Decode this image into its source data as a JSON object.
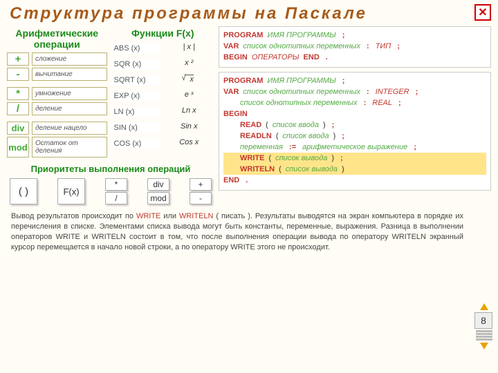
{
  "title": "Структура программы на Паскале",
  "left": {
    "ops_header": "Арифметические операции",
    "fx_header": "Функции F(x)",
    "ops": [
      {
        "sym": "+",
        "desc": "сложение"
      },
      {
        "sym": "-",
        "desc": "вычитание"
      },
      {
        "sym": "*",
        "desc": "умножение"
      },
      {
        "sym": "/",
        "desc": "деление"
      },
      {
        "sym": "div",
        "desc": "деление нацело"
      },
      {
        "sym": "mod",
        "desc": "Остаток от деления"
      }
    ],
    "fx": [
      {
        "name": "ABS (x)",
        "val": "| x |"
      },
      {
        "name": "SQR (x)",
        "val": "x ²"
      },
      {
        "name": "SQRT (x)",
        "val_raw": "sqrt"
      },
      {
        "name": "EXP (x)",
        "val": "e ˣ"
      },
      {
        "name": "LN (x)",
        "val": "Ln x"
      },
      {
        "name": "SIN (x)",
        "val": "Sin x"
      },
      {
        "name": "COS (x)",
        "val": "Cos x"
      }
    ],
    "prio_header": "Приоритеты выполнения операций",
    "prio": {
      "paren": "( )",
      "fx": "F(x)",
      "star": "*",
      "slash": "/",
      "div": "div",
      "mod": "mod",
      "plus": "+",
      "minus": "-"
    }
  },
  "right": {
    "b1": {
      "program": "PROGRAM",
      "program_name": "ИМЯ ПРОГРАММЫ",
      "semi": ";",
      "var": "VAR",
      "varlist": "список однотипных переменных",
      "type": "ТИП",
      "begin": "BEGIN",
      "ops": "ОПЕРАТОРЫ",
      "end": "END",
      "dot": "."
    },
    "b2": {
      "program": "PROGRAM",
      "program_name": "ИМЯ ПРОГРАММЫ",
      "semi": ";",
      "var": "VAR",
      "varlist": "список однотипных переменных",
      "integer": "INTEGER",
      "real": "REAL",
      "begin": "BEGIN",
      "read": "READ",
      "readln": "READLN",
      "in_list": "список ввода",
      "varname": "переменная",
      "assign": ":=",
      "expr": "арифметическое выражение",
      "write": "WRITE",
      "writeln": "WRITELN",
      "out_list": "список вывода",
      "end": "END",
      "dot": "."
    }
  },
  "bottom": {
    "write": "WRITE",
    "writeln": "WRITELN",
    "text": "Вывод результатов происходит по {W} или {WL} ( писать ). Результаты выводятся на экран компьютера в порядке их перечисления в списке. Элементами списка вывода могут быть константы, переменные, выражения. Разница в выполнении операторов WRITE и WRITELN состоит в том, что после выполнения операции вывода по оператору WRITELN экранный курсор перемещается в начало новой строки, а по оператору WRITE этого не происходит."
  },
  "page": "8",
  "colors": {
    "title": "#a85a1a",
    "green": "#1a8a1a",
    "red": "#c2372f",
    "highlight": "#ffe48a",
    "bg": "#fffdf5",
    "box_border": "#b8b070"
  }
}
